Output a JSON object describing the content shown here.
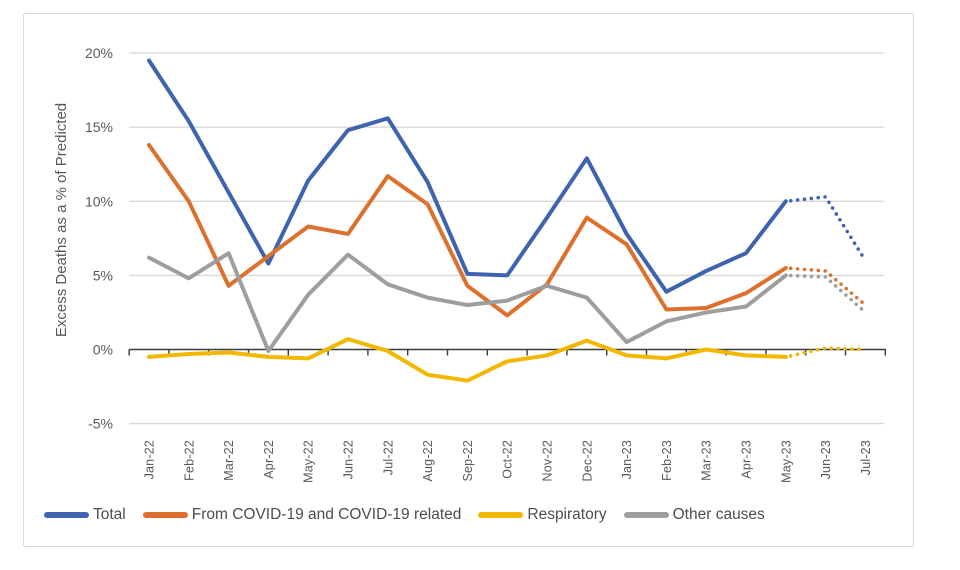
{
  "chart_data": {
    "type": "line",
    "title": "",
    "ylabel": "Excess Deaths as a % of Predicted",
    "xlabel": "",
    "ylim": [
      -5,
      20
    ],
    "grid": "horizontal",
    "legend_position": "bottom",
    "yticks": [
      {
        "value": 20,
        "label": "20%"
      },
      {
        "value": 15,
        "label": "15%"
      },
      {
        "value": 10,
        "label": "10%"
      },
      {
        "value": 5,
        "label": "5%"
      },
      {
        "value": 0,
        "label": "0%"
      },
      {
        "value": -5,
        "label": "-5%"
      }
    ],
    "categories": [
      "Jan-22",
      "Feb-22",
      "Mar-22",
      "Apr-22",
      "May-22",
      "Jun-22",
      "Jul-22",
      "Aug-22",
      "Sep-22",
      "Oct-22",
      "Nov-22",
      "Dec-22",
      "Jan-23",
      "Feb-23",
      "Mar-23",
      "Apr-23",
      "May-23",
      "Jun-23",
      "Jul-23"
    ],
    "projected_start_index": 16,
    "projected_months": [
      "Jun-23",
      "Jul-23"
    ],
    "series": [
      {
        "name": "Total",
        "color": "#3f63af",
        "values": [
          19.5,
          15.4,
          10.6,
          5.8,
          11.4,
          14.8,
          15.6,
          11.3,
          5.1,
          5.0,
          8.9,
          12.9,
          7.8,
          3.9,
          5.3,
          6.5,
          10.0,
          10.3,
          6.0
        ]
      },
      {
        "name": "From COVID-19 and COVID-19 related",
        "color": "#dc712d",
        "values": [
          13.8,
          10.0,
          4.3,
          6.3,
          8.3,
          7.8,
          11.7,
          9.8,
          4.3,
          2.3,
          4.4,
          8.9,
          7.1,
          2.7,
          2.8,
          3.8,
          5.5,
          5.3,
          3.0
        ]
      },
      {
        "name": "Respiratory",
        "color": "#f2b800",
        "values": [
          -0.5,
          -0.3,
          -0.2,
          -0.5,
          -0.6,
          0.7,
          -0.1,
          -1.7,
          -2.1,
          -0.8,
          -0.4,
          0.6,
          -0.4,
          -0.6,
          0.0,
          -0.4,
          -0.5,
          0.1,
          0.0
        ]
      },
      {
        "name": "Other causes",
        "color": "#9e9e9e",
        "values": [
          6.2,
          4.8,
          6.5,
          -0.1,
          3.7,
          6.4,
          4.4,
          3.5,
          3.0,
          3.3,
          4.3,
          3.5,
          0.5,
          1.9,
          2.5,
          2.9,
          5.0,
          4.9,
          2.5
        ]
      }
    ]
  }
}
